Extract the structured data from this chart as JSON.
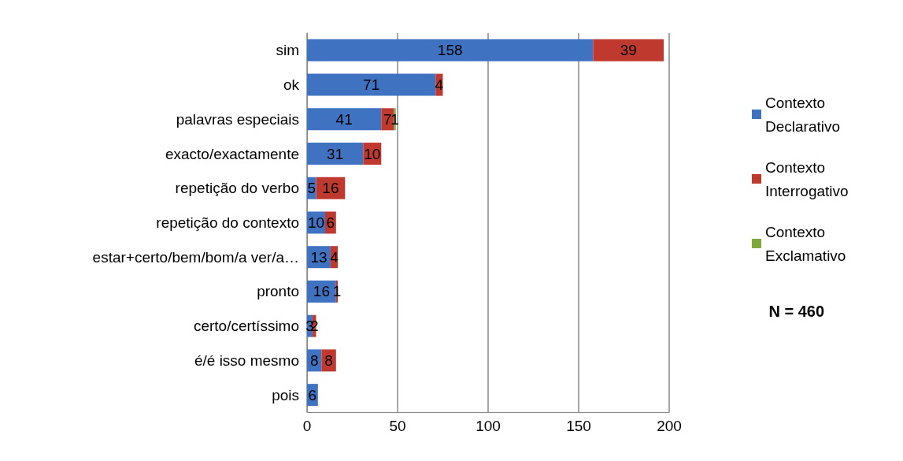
{
  "chart_data": {
    "type": "bar",
    "orientation": "horizontal",
    "stacked": true,
    "categories": [
      "sim",
      "ok",
      "palavras especiais",
      "exacto/exactamente",
      "repetição do verbo",
      "repetição do contexto",
      "estar+certo/bem/bom/a ver/a…",
      "pronto",
      "certo/certíssimo",
      "é/é isso mesmo",
      "pois"
    ],
    "series": [
      {
        "name": "Contexto Declarativo",
        "color": "#3f72c0",
        "values": [
          158,
          71,
          41,
          31,
          5,
          10,
          13,
          16,
          3,
          8,
          6
        ]
      },
      {
        "name": "Contexto Interrogativo",
        "color": "#c0392f",
        "values": [
          39,
          4,
          7,
          10,
          16,
          6,
          4,
          1,
          2,
          8,
          null
        ]
      },
      {
        "name": "Contexto Exclamativo",
        "color": "#7fa83a",
        "values": [
          null,
          null,
          1,
          null,
          null,
          null,
          null,
          null,
          null,
          null,
          null
        ]
      }
    ],
    "xlim": [
      0,
      200
    ],
    "xticks": [
      0,
      50,
      100,
      150,
      200
    ],
    "grid": "x",
    "legend": "right",
    "data_labels": true,
    "annotations": [
      "N = 460"
    ]
  }
}
